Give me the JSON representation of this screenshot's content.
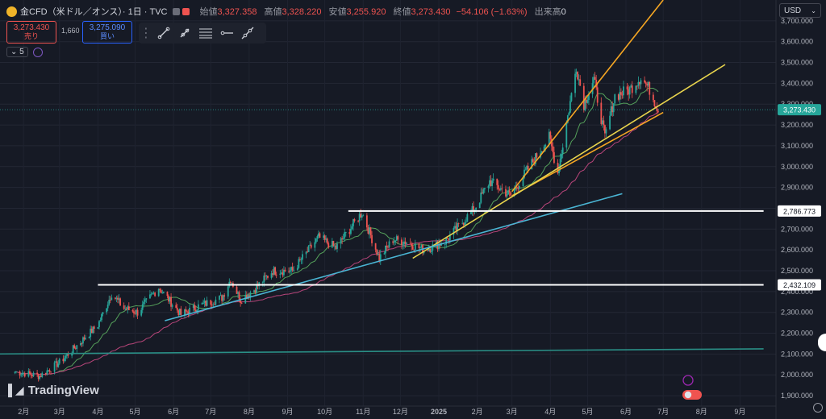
{
  "header": {
    "title": "金CFD（米ドル／オンス）· 1日 · TVC",
    "open_label": "始値",
    "open": "3,327.358",
    "high_label": "高値",
    "high": "3,328.220",
    "low_label": "安値",
    "low": "3,255.920",
    "close_label": "終値",
    "close": "3,273.430",
    "change": "−54.106 (−1.63%)",
    "volume_label": "出来高",
    "volume": "0"
  },
  "trade": {
    "sell_price": "3,273.430",
    "sell_label": "売り",
    "spread": "1,660",
    "buy_price": "3,275.090",
    "buy_label": "買い"
  },
  "indicators": {
    "count": "5"
  },
  "currency": "USD",
  "brand": "TradingView",
  "colors": {
    "bg": "#161a25",
    "up": "#26a69a",
    "down": "#ef5350",
    "ma_short": "#55a15b",
    "ma_long": "#b8457a",
    "orange": "#f5a623",
    "yellow": "#e8d44d",
    "cyan": "#4ab5d4",
    "teal": "#2a8f86",
    "white": "#ffffff",
    "price_tag": "#26a69a"
  },
  "chart_data": {
    "type": "candlestick",
    "ylim": [
      1850,
      3800
    ],
    "y_ticks": [
      1900,
      2000,
      2100,
      2200,
      2300,
      2400,
      2500,
      2600,
      2700,
      2800,
      2900,
      3000,
      3100,
      3200,
      3300,
      3400,
      3500,
      3600,
      3700
    ],
    "x_labels": [
      "2月",
      "3月",
      "4月",
      "5月",
      "6月",
      "7月",
      "8月",
      "9月",
      "10月",
      "11月",
      "12月",
      "2025",
      "2月",
      "3月",
      "4月",
      "5月",
      "6月",
      "7月",
      "8月",
      "9月"
    ],
    "current_price": "3,273.430",
    "levels": [
      {
        "label": "2,786.773",
        "value": 2786.773
      },
      {
        "label": "2,432.109",
        "value": 2432.109
      }
    ],
    "trend_points": [
      [
        "2024-01-25",
        2015
      ],
      [
        "2024-02-14",
        1995
      ],
      [
        "2024-03-01",
        2060
      ],
      [
        "2024-03-20",
        2170
      ],
      [
        "2024-04-01",
        2240
      ],
      [
        "2024-04-12",
        2390
      ],
      [
        "2024-04-22",
        2320
      ],
      [
        "2024-05-03",
        2300
      ],
      [
        "2024-05-20",
        2420
      ],
      [
        "2024-06-07",
        2290
      ],
      [
        "2024-06-21",
        2330
      ],
      [
        "2024-07-10",
        2370
      ],
      [
        "2024-07-17",
        2460
      ],
      [
        "2024-07-25",
        2360
      ],
      [
        "2024-08-05",
        2410
      ],
      [
        "2024-08-20",
        2500
      ],
      [
        "2024-09-05",
        2500
      ],
      [
        "2024-09-26",
        2660
      ],
      [
        "2024-10-10",
        2610
      ],
      [
        "2024-10-31",
        2780
      ],
      [
        "2024-11-14",
        2560
      ],
      [
        "2024-11-25",
        2650
      ],
      [
        "2024-12-05",
        2640
      ],
      [
        "2024-12-20",
        2600
      ],
      [
        "2025-01-06",
        2640
      ],
      [
        "2025-01-30",
        2800
      ],
      [
        "2025-02-11",
        2930
      ],
      [
        "2025-02-28",
        2860
      ],
      [
        "2025-03-14",
        2990
      ],
      [
        "2025-03-31",
        3140
      ],
      [
        "2025-04-07",
        2970
      ],
      [
        "2025-04-22",
        3480
      ],
      [
        "2025-04-28",
        3300
      ],
      [
        "2025-05-06",
        3420
      ],
      [
        "2025-05-15",
        3140
      ],
      [
        "2025-05-23",
        3340
      ],
      [
        "2025-06-04",
        3370
      ],
      [
        "2025-06-13",
        3430
      ],
      [
        "2025-06-20",
        3370
      ],
      [
        "2025-06-27",
        3273
      ]
    ],
    "trend_lines": [
      {
        "color": "orange",
        "from": [
          "2025-03-01",
          2880
        ],
        "to": [
          "2025-07-01",
          3800
        ]
      },
      {
        "color": "orange",
        "from": [
          "2025-03-01",
          2860
        ],
        "to": [
          "2025-07-01",
          3260
        ]
      },
      {
        "color": "yellow",
        "from": [
          "2024-12-11",
          2560
        ],
        "to": [
          "2025-08-20",
          3490
        ]
      },
      {
        "color": "cyan",
        "from": [
          "2024-05-25",
          2260
        ],
        "to": [
          "2025-05-29",
          2870
        ]
      },
      {
        "color": "teal",
        "from": [
          "2024-01-01",
          2100
        ],
        "to": [
          "2025-09-20",
          2125
        ]
      },
      {
        "color": "white",
        "from": [
          "2024-10-20",
          2786.773
        ],
        "to": [
          "2025-09-20",
          2786.773
        ]
      },
      {
        "color": "white",
        "from": [
          "2024-04-01",
          2432.109
        ],
        "to": [
          "2025-09-20",
          2432.109
        ]
      }
    ]
  }
}
